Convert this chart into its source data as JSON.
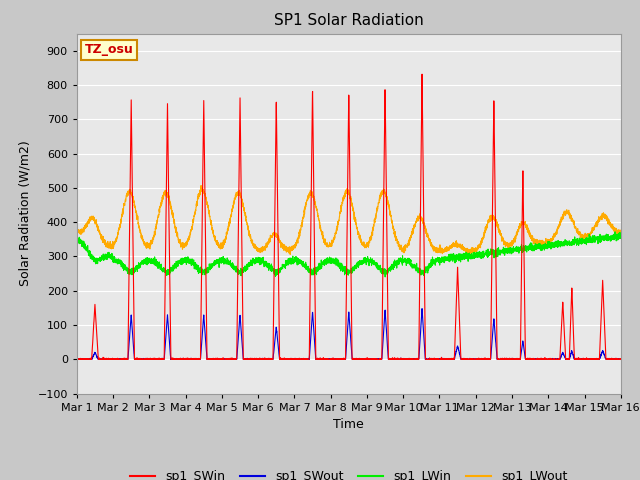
{
  "title": "SP1 Solar Radiation",
  "ylabel": "Solar Radiation (W/m2)",
  "xlabel": "Time",
  "ylim": [
    -100,
    950
  ],
  "yticks": [
    -100,
    0,
    100,
    200,
    300,
    400,
    500,
    600,
    700,
    800,
    900
  ],
  "annotation_text": "TZ_osu",
  "annotation_bg": "#ffffcc",
  "annotation_border": "#cc8800",
  "fig_bg": "#c8c8c8",
  "plot_bg": "#e8e8e8",
  "colors": {
    "SWin": "#ff0000",
    "SWout": "#0000dd",
    "LWin": "#00ee00",
    "LWout": "#ffaa00"
  },
  "legend_labels": [
    "sp1_SWin",
    "sp1_SWout",
    "sp1_LWin",
    "sp1_LWout"
  ],
  "xtick_labels": [
    "Mar 1",
    "Mar 2",
    "Mar 3",
    "Mar 4",
    "Mar 5",
    "Mar 6",
    "Mar 7",
    "Mar 8",
    "Mar 9",
    "Mar 10",
    "Mar 11",
    "Mar 12",
    "Mar 13",
    "Mar 14",
    "Mar 15",
    "Mar 16"
  ],
  "figsize": [
    6.4,
    4.8
  ],
  "dpi": 100
}
